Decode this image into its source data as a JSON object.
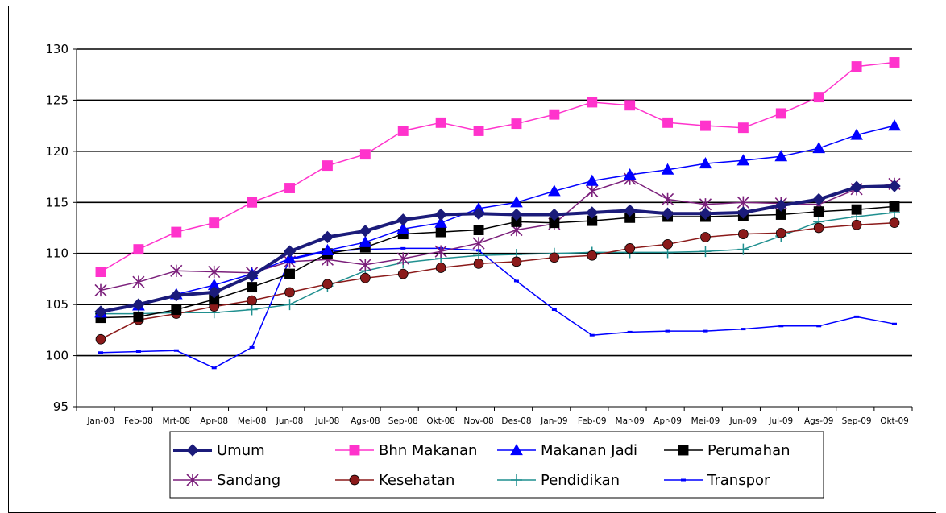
{
  "chart_data": {
    "type": "line",
    "title": "",
    "xlabel": "",
    "ylabel": "",
    "ylim": [
      95,
      130
    ],
    "yticks": [
      95,
      100,
      105,
      110,
      115,
      120,
      125,
      130
    ],
    "grid": "horizontal",
    "legend_position": "bottom",
    "categories": [
      "Jan-08",
      "Feb-08",
      "Mrt-08",
      "Apr-08",
      "Mei-08",
      "Jun-08",
      "Jul-08",
      "Ags-08",
      "Sep-08",
      "Okt-08",
      "Nov-08",
      "Des-08",
      "Jan-09",
      "Feb-09",
      "Mar-09",
      "Apr-09",
      "Mei-09",
      "Jun-09",
      "Jul-09",
      "Ags-09",
      "Sep-09",
      "Okt-09"
    ],
    "series": [
      {
        "name": "Umum",
        "color": "#1b1b7a",
        "marker": "diamond",
        "width": 4,
        "values": [
          104.3,
          105.0,
          105.9,
          106.2,
          107.8,
          110.2,
          111.6,
          112.2,
          113.3,
          113.8,
          113.9,
          113.8,
          113.8,
          114.0,
          114.2,
          113.9,
          113.9,
          114.0,
          114.7,
          115.3,
          116.5,
          116.6
        ]
      },
      {
        "name": "Bhn Makanan",
        "color": "#ff33cc",
        "marker": "square",
        "width": 1.5,
        "values": [
          108.2,
          110.4,
          112.1,
          113.0,
          115.0,
          116.4,
          118.6,
          119.7,
          122.0,
          122.8,
          122.0,
          122.7,
          123.6,
          124.8,
          124.5,
          122.8,
          122.5,
          122.3,
          123.7,
          125.3,
          128.3,
          128.7
        ]
      },
      {
        "name": "Makanan Jadi",
        "color": "#0000ff",
        "marker": "triangle",
        "width": 1.5,
        "values": [
          104.2,
          104.9,
          106.0,
          106.9,
          108.0,
          109.5,
          110.3,
          111.1,
          112.4,
          113.0,
          114.4,
          115.0,
          116.1,
          117.1,
          117.7,
          118.2,
          118.8,
          119.1,
          119.5,
          120.3,
          121.6,
          122.5
        ]
      },
      {
        "name": "Perumahan",
        "color": "#000000",
        "marker": "square",
        "width": 1.5,
        "values": [
          103.7,
          103.8,
          104.5,
          105.5,
          106.7,
          108.0,
          110.0,
          110.6,
          111.9,
          112.1,
          112.3,
          113.1,
          113.0,
          113.2,
          113.5,
          113.6,
          113.6,
          113.7,
          113.8,
          114.1,
          114.3,
          114.6
        ]
      },
      {
        "name": "Sandang",
        "color": "#7b1f7b",
        "marker": "star",
        "width": 1.5,
        "values": [
          106.4,
          107.2,
          108.3,
          108.2,
          108.1,
          109.2,
          109.4,
          108.9,
          109.5,
          110.2,
          111.0,
          112.3,
          112.9,
          116.1,
          117.3,
          115.3,
          114.8,
          115.0,
          114.9,
          114.8,
          116.3,
          116.8
        ]
      },
      {
        "name": "Kesehatan",
        "color": "#8b1a1a",
        "marker": "circle",
        "width": 1.5,
        "values": [
          101.6,
          103.5,
          104.1,
          104.8,
          105.4,
          106.2,
          107.0,
          107.6,
          108.0,
          108.6,
          109.0,
          109.2,
          109.6,
          109.8,
          110.5,
          110.9,
          111.6,
          111.9,
          112.0,
          112.5,
          112.8,
          113.0
        ]
      },
      {
        "name": "Pendidikan",
        "color": "#1f8f8f",
        "marker": "plus",
        "width": 1.5,
        "values": [
          104.1,
          104.1,
          104.2,
          104.2,
          104.5,
          105.0,
          106.8,
          108.3,
          109.1,
          109.5,
          109.8,
          109.9,
          110.0,
          110.1,
          110.1,
          110.1,
          110.2,
          110.4,
          111.7,
          113.1,
          113.6,
          114.0
        ]
      },
      {
        "name": "Transpor",
        "color": "#0000ff",
        "marker": "dash",
        "width": 1.5,
        "values": [
          100.3,
          100.4,
          100.5,
          98.8,
          100.8,
          109.4,
          110.2,
          110.4,
          110.5,
          110.5,
          110.3,
          107.3,
          104.5,
          102.0,
          102.3,
          102.4,
          102.4,
          102.6,
          102.9,
          102.9,
          103.8,
          103.1
        ]
      }
    ]
  }
}
